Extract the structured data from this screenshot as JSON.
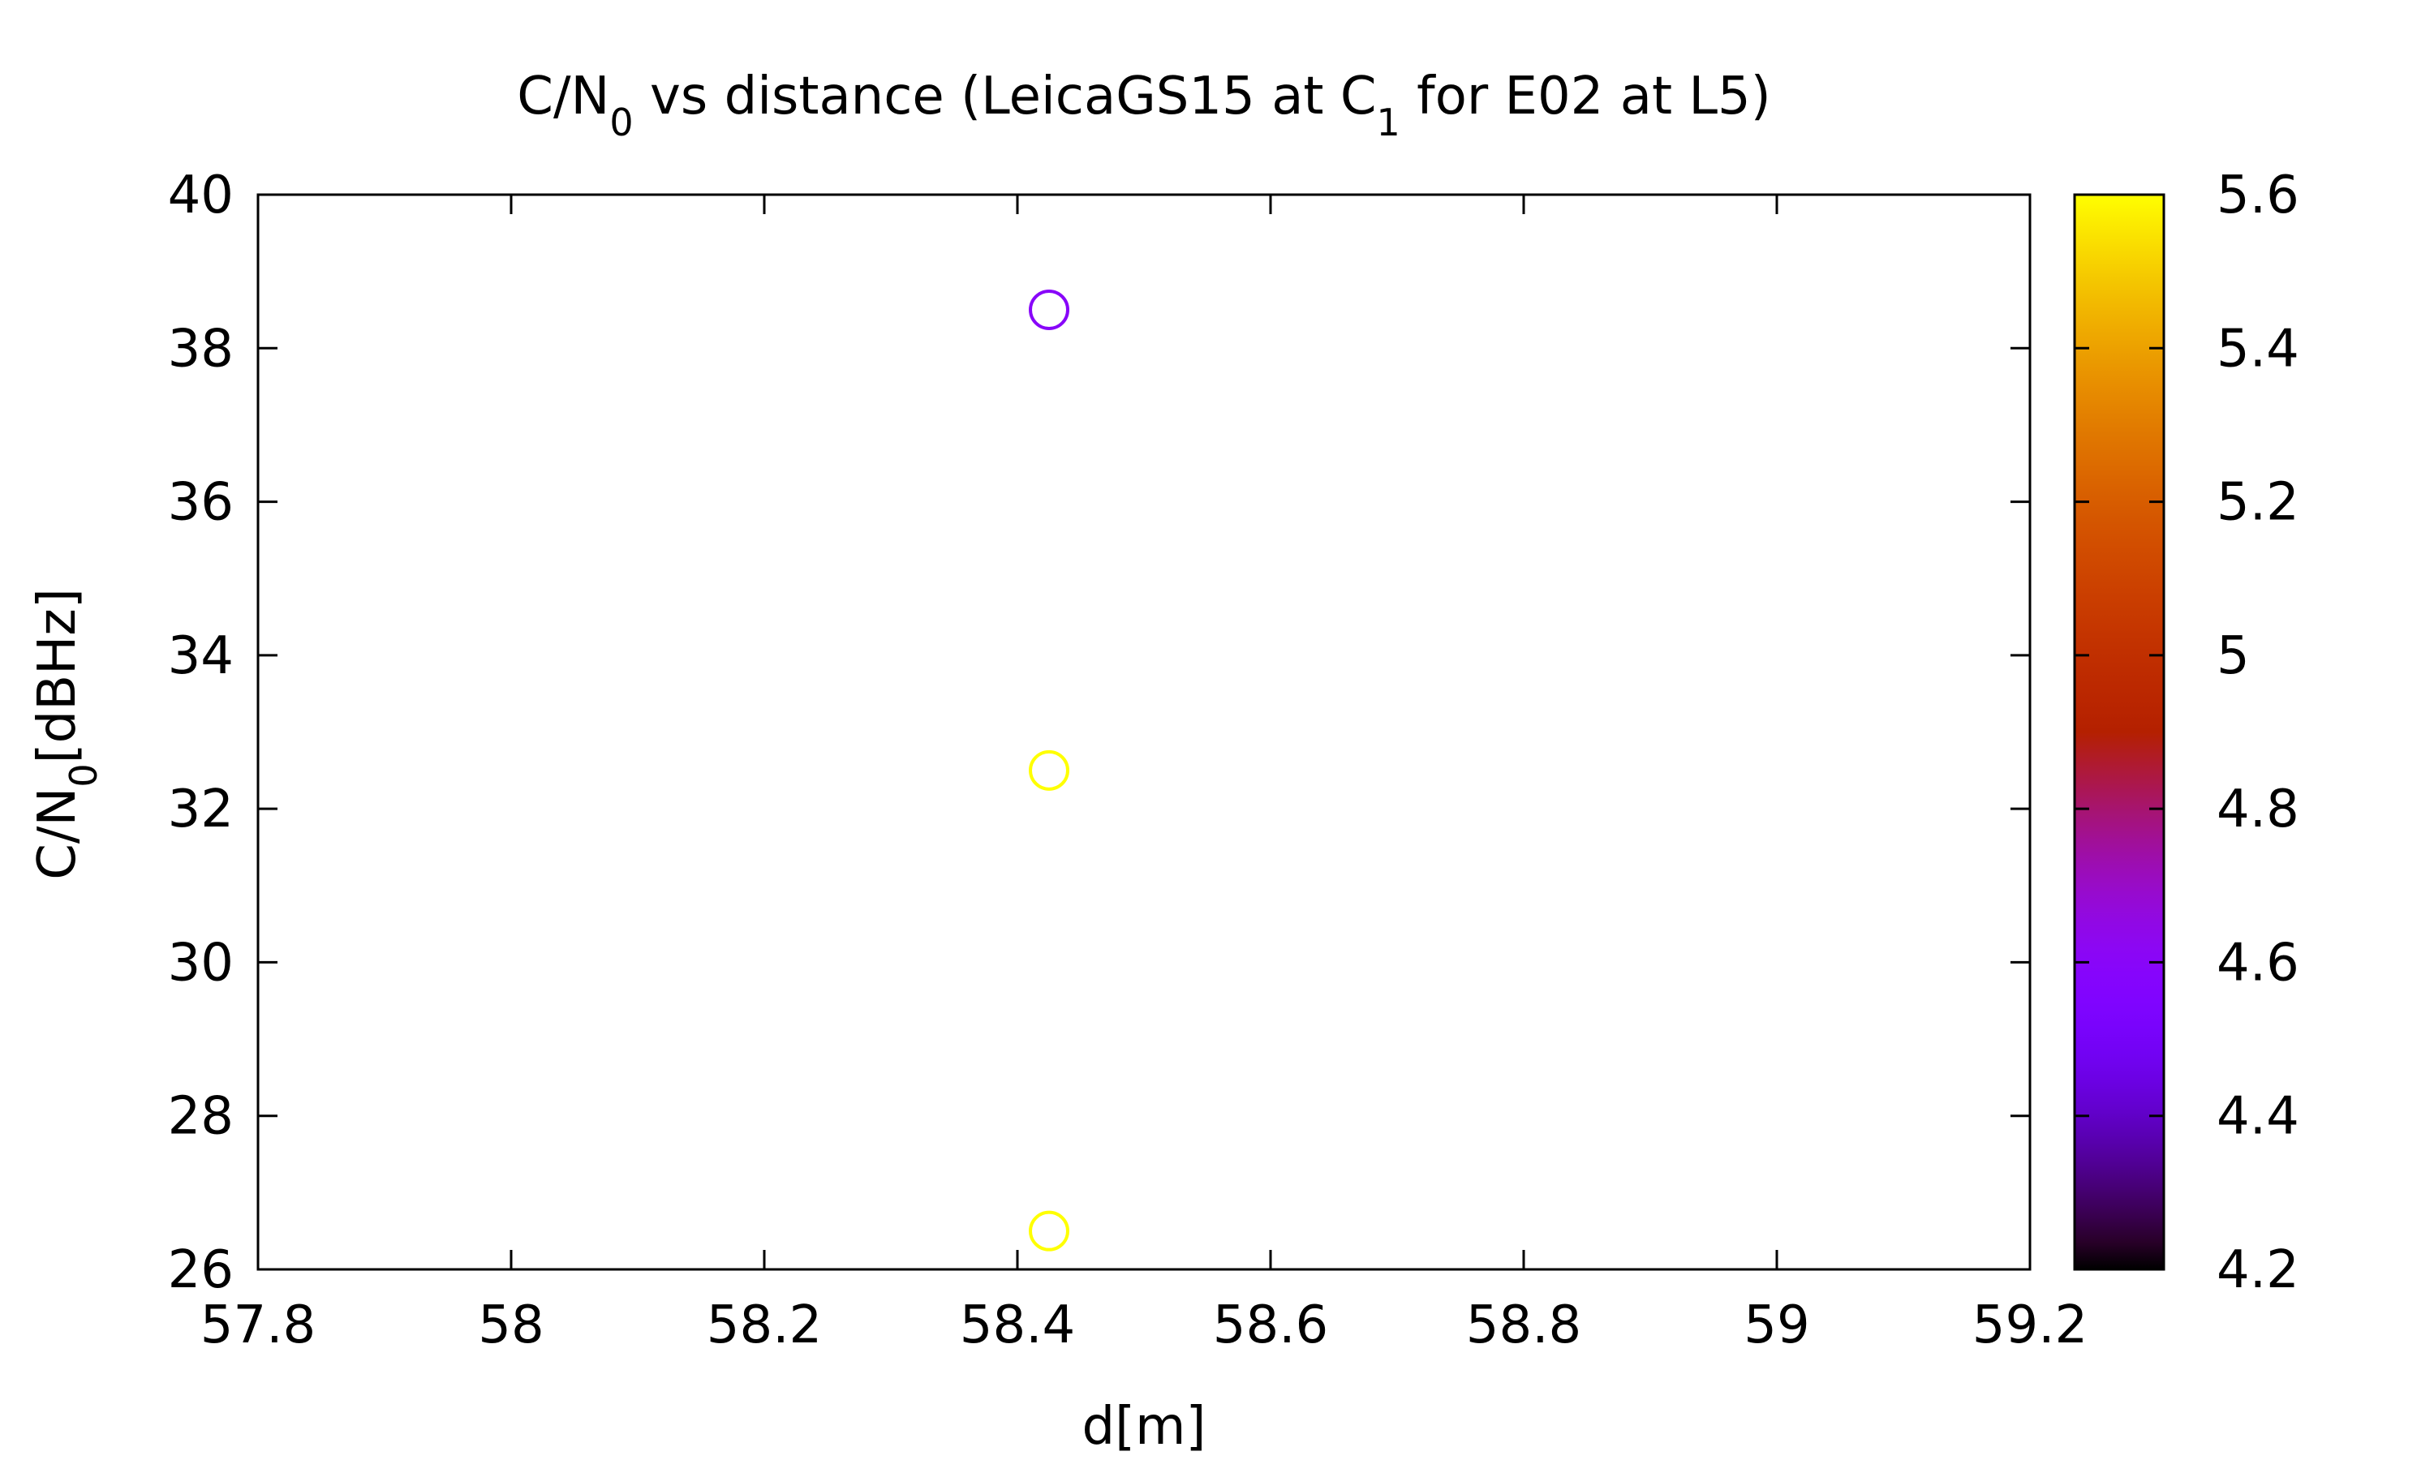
{
  "chart_data": {
    "type": "scatter",
    "title": {
      "prefix": "C/N",
      "prefix_sub": "0",
      "middle": " vs distance (LeicaGS15 at C",
      "middle_sub": "1",
      "suffix": " for E02 at L5)"
    },
    "xlabel": "d[m]",
    "ylabel": {
      "main": "C/N",
      "sub": "0",
      "rest": "[dBHz]"
    },
    "xlim": [
      57.8,
      59.2
    ],
    "ylim": [
      26,
      40
    ],
    "x_ticks": [
      "57.8",
      "58",
      "58.2",
      "58.4",
      "58.6",
      "58.8",
      "59",
      "59.2"
    ],
    "y_ticks": [
      "26",
      "28",
      "30",
      "32",
      "34",
      "36",
      "38",
      "40"
    ],
    "colorbar": {
      "range": [
        4.2,
        5.6
      ],
      "ticks": [
        "4.2",
        "4.4",
        "4.6",
        "4.8",
        "5",
        "5.2",
        "5.4",
        "5.6"
      ],
      "palette": "gnuplot-pm3d"
    },
    "marker": "open-circle",
    "grid": false,
    "legend": "none",
    "points": [
      {
        "x": 58.425,
        "y": 38.5,
        "c": 4.6
      },
      {
        "x": 58.425,
        "y": 32.5,
        "c": 5.6
      },
      {
        "x": 58.425,
        "y": 26.5,
        "c": 5.6
      }
    ]
  }
}
